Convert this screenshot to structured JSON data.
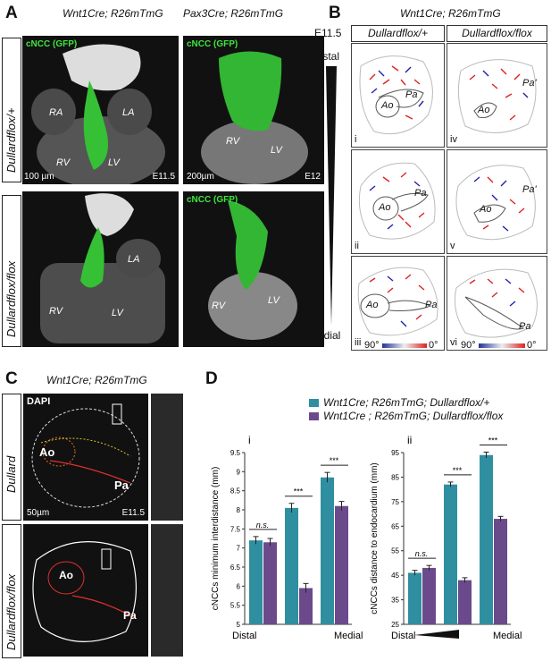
{
  "panelA": {
    "label": "A",
    "col1_title": "Wnt1Cre; R26mTmG",
    "col2_title": "Pax3Cre; R26mTmG",
    "row1_side": "Dullardflox/+",
    "row2_side": "Dullardflox/flox",
    "gfp_tag": "cNCC (GFP)",
    "ra": "RA",
    "la": "LA",
    "rv": "RV",
    "lv": "LV",
    "scale1": "100 µm",
    "scale2": "200µm",
    "stage1": "E11.5",
    "stage2": "E12"
  },
  "panelB": {
    "label": "B",
    "title": "Wnt1Cre; R26mTmG",
    "stage": "E11.5",
    "col1": "Dullardflox/+",
    "col2": "Dullardflox/flox",
    "distal": "Distal",
    "medial": "Medial",
    "sections": [
      "i",
      "ii",
      "iii",
      "iv",
      "v",
      "vi"
    ],
    "ao": "Ao",
    "pa": "Pa",
    "pa_prime": "Pa'",
    "angle_left": "90°",
    "angle_right": "0°"
  },
  "panelC": {
    "label": "C",
    "title": "Wnt1Cre; R26mTmG",
    "dapi": "DAPI",
    "row1_side": "Dullard",
    "row2_side": "Dullardflox/flox",
    "ao": "Ao",
    "pa": "Pa",
    "scale": "50µm",
    "stage": "E11.5"
  },
  "panelD": {
    "label": "D",
    "legend1": "Wnt1Cre; R26mTmG; Dullardflox/+",
    "legend2": "Wnt1Cre ; R26mTmG; Dullardflox/flox",
    "colors": {
      "control": "#2f8fa0",
      "mutant": "#6b4a8c"
    },
    "sig": [
      "n.s.",
      "***",
      "***"
    ],
    "xleft": "Distal",
    "xright": "Medial"
  },
  "chart_data": [
    {
      "type": "bar",
      "title": "i",
      "ylabel": "cNCCs minimum interdistance (mm)",
      "ylim": [
        5,
        9.5
      ],
      "yticks": [
        5,
        5.5,
        6,
        6.5,
        7,
        7.5,
        8,
        8.5,
        9,
        9.5
      ],
      "categories": [
        "Distal",
        "",
        "Medial"
      ],
      "series": [
        {
          "name": "Wnt1Cre; R26mTmG; Dullardflox/+",
          "values": [
            7.2,
            8.05,
            8.85
          ],
          "errors": [
            0.1,
            0.12,
            0.13
          ]
        },
        {
          "name": "Wnt1Cre ; R26mTmG; Dullardflox/flox",
          "values": [
            7.15,
            5.95,
            8.1
          ],
          "errors": [
            0.1,
            0.12,
            0.12
          ]
        }
      ]
    },
    {
      "type": "bar",
      "title": "ii",
      "ylabel": "cNCCs distance to endocardium (mm)",
      "ylim": [
        25,
        95
      ],
      "yticks": [
        25,
        35,
        45,
        55,
        65,
        75,
        85,
        95
      ],
      "categories": [
        "Distal",
        "",
        "Medial"
      ],
      "series": [
        {
          "name": "Wnt1Cre; R26mTmG; Dullardflox/+",
          "values": [
            46,
            82,
            94
          ],
          "errors": [
            1,
            1,
            1.2
          ]
        },
        {
          "name": "Wnt1Cre ; R26mTmG; Dullardflox/flox",
          "values": [
            48,
            43,
            68
          ],
          "errors": [
            1,
            1,
            1
          ]
        }
      ]
    }
  ]
}
